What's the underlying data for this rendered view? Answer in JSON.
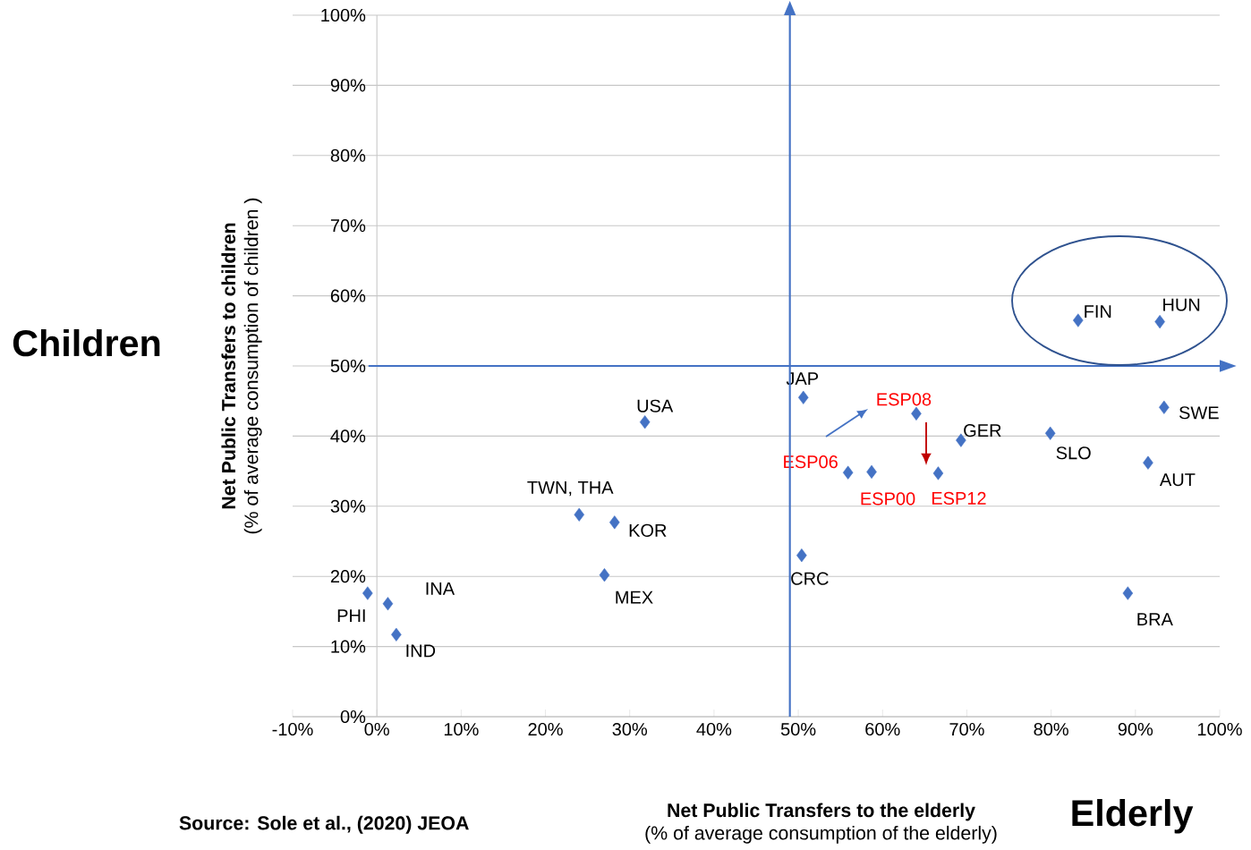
{
  "chart_data": {
    "type": "scatter",
    "xlabel": "**Net Public Transfers to the elderly**\n(% of average consumption of the elderly)",
    "ylabel": "**Net Public Transfers to children**\n(% of average consumption of children )",
    "annotations": [
      "Children",
      "Elderly",
      "Source: Sole et al., (2020) JEOA"
    ],
    "series": [
      {
        "color": "#4472c4",
        "x": [
          -1.1,
          1.3,
          2.3,
          24.0,
          28.2,
          27.0,
          31.8,
          50.6,
          50.4,
          69.3,
          79.9,
          83.2,
          92.9,
          93.4,
          91.5,
          89.1
        ],
        "values": [
          17.6,
          16.1,
          11.7,
          28.8,
          27.7,
          20.2,
          42.0,
          45.5,
          23.0,
          39.4,
          40.4,
          56.5,
          56.3,
          44.1,
          36.2,
          17.6
        ],
        "value_labels": [
          "PHI",
          "INA",
          "IND",
          "TWN, THA",
          "KOR",
          "MEX",
          "USA",
          "JAP",
          "CRC",
          "GER",
          "SLO",
          "FIN",
          "HUN",
          "SWE",
          "AUT",
          "BRA"
        ]
      },
      {
        "color": "#4472c4",
        "x": [
          55.9,
          58.7,
          64.0,
          66.6
        ],
        "values": [
          34.8,
          34.9,
          43.2,
          34.7
        ],
        "value_labels": [
          "ESP06",
          "ESP00",
          "ESP08",
          "ESP12"
        ]
      }
    ],
    "xlim": [
      -10,
      100
    ],
    "ylim": [
      0,
      100
    ],
    "xticks": [
      {
        "value": -10,
        "label": "-10%"
      },
      {
        "value": 0,
        "label": "0%"
      },
      {
        "value": 10,
        "label": "10%"
      },
      {
        "value": 20,
        "label": "20%"
      },
      {
        "value": 30,
        "label": "30%"
      },
      {
        "value": 40,
        "label": "40%"
      },
      {
        "value": 50,
        "label": "50%"
      },
      {
        "value": 60,
        "label": "60%"
      },
      {
        "value": 70,
        "label": "70%"
      },
      {
        "value": 80,
        "label": "80%"
      },
      {
        "value": 90,
        "label": "90%"
      },
      {
        "value": 100,
        "label": "100%"
      }
    ],
    "yticks": [
      {
        "value": 0,
        "label": "0%"
      },
      {
        "value": 10,
        "label": "10%"
      },
      {
        "value": 20,
        "label": "20%"
      },
      {
        "value": 30,
        "label": "30%"
      },
      {
        "value": 40,
        "label": "40%"
      },
      {
        "value": 50,
        "label": "50%"
      },
      {
        "value": 60,
        "label": "60%"
      },
      {
        "value": 70,
        "label": "70%"
      },
      {
        "value": 80,
        "label": "80%"
      },
      {
        "value": 90,
        "label": "90%"
      },
      {
        "value": 100,
        "label": "100%"
      }
    ],
    "ref_lines": [
      {
        "axis": "y",
        "value": 50,
        "color": "#4472c4"
      },
      {
        "axis": "x",
        "value": 49,
        "color": "#4472c4"
      }
    ],
    "grid": "y",
    "marker": "diamond"
  }
}
